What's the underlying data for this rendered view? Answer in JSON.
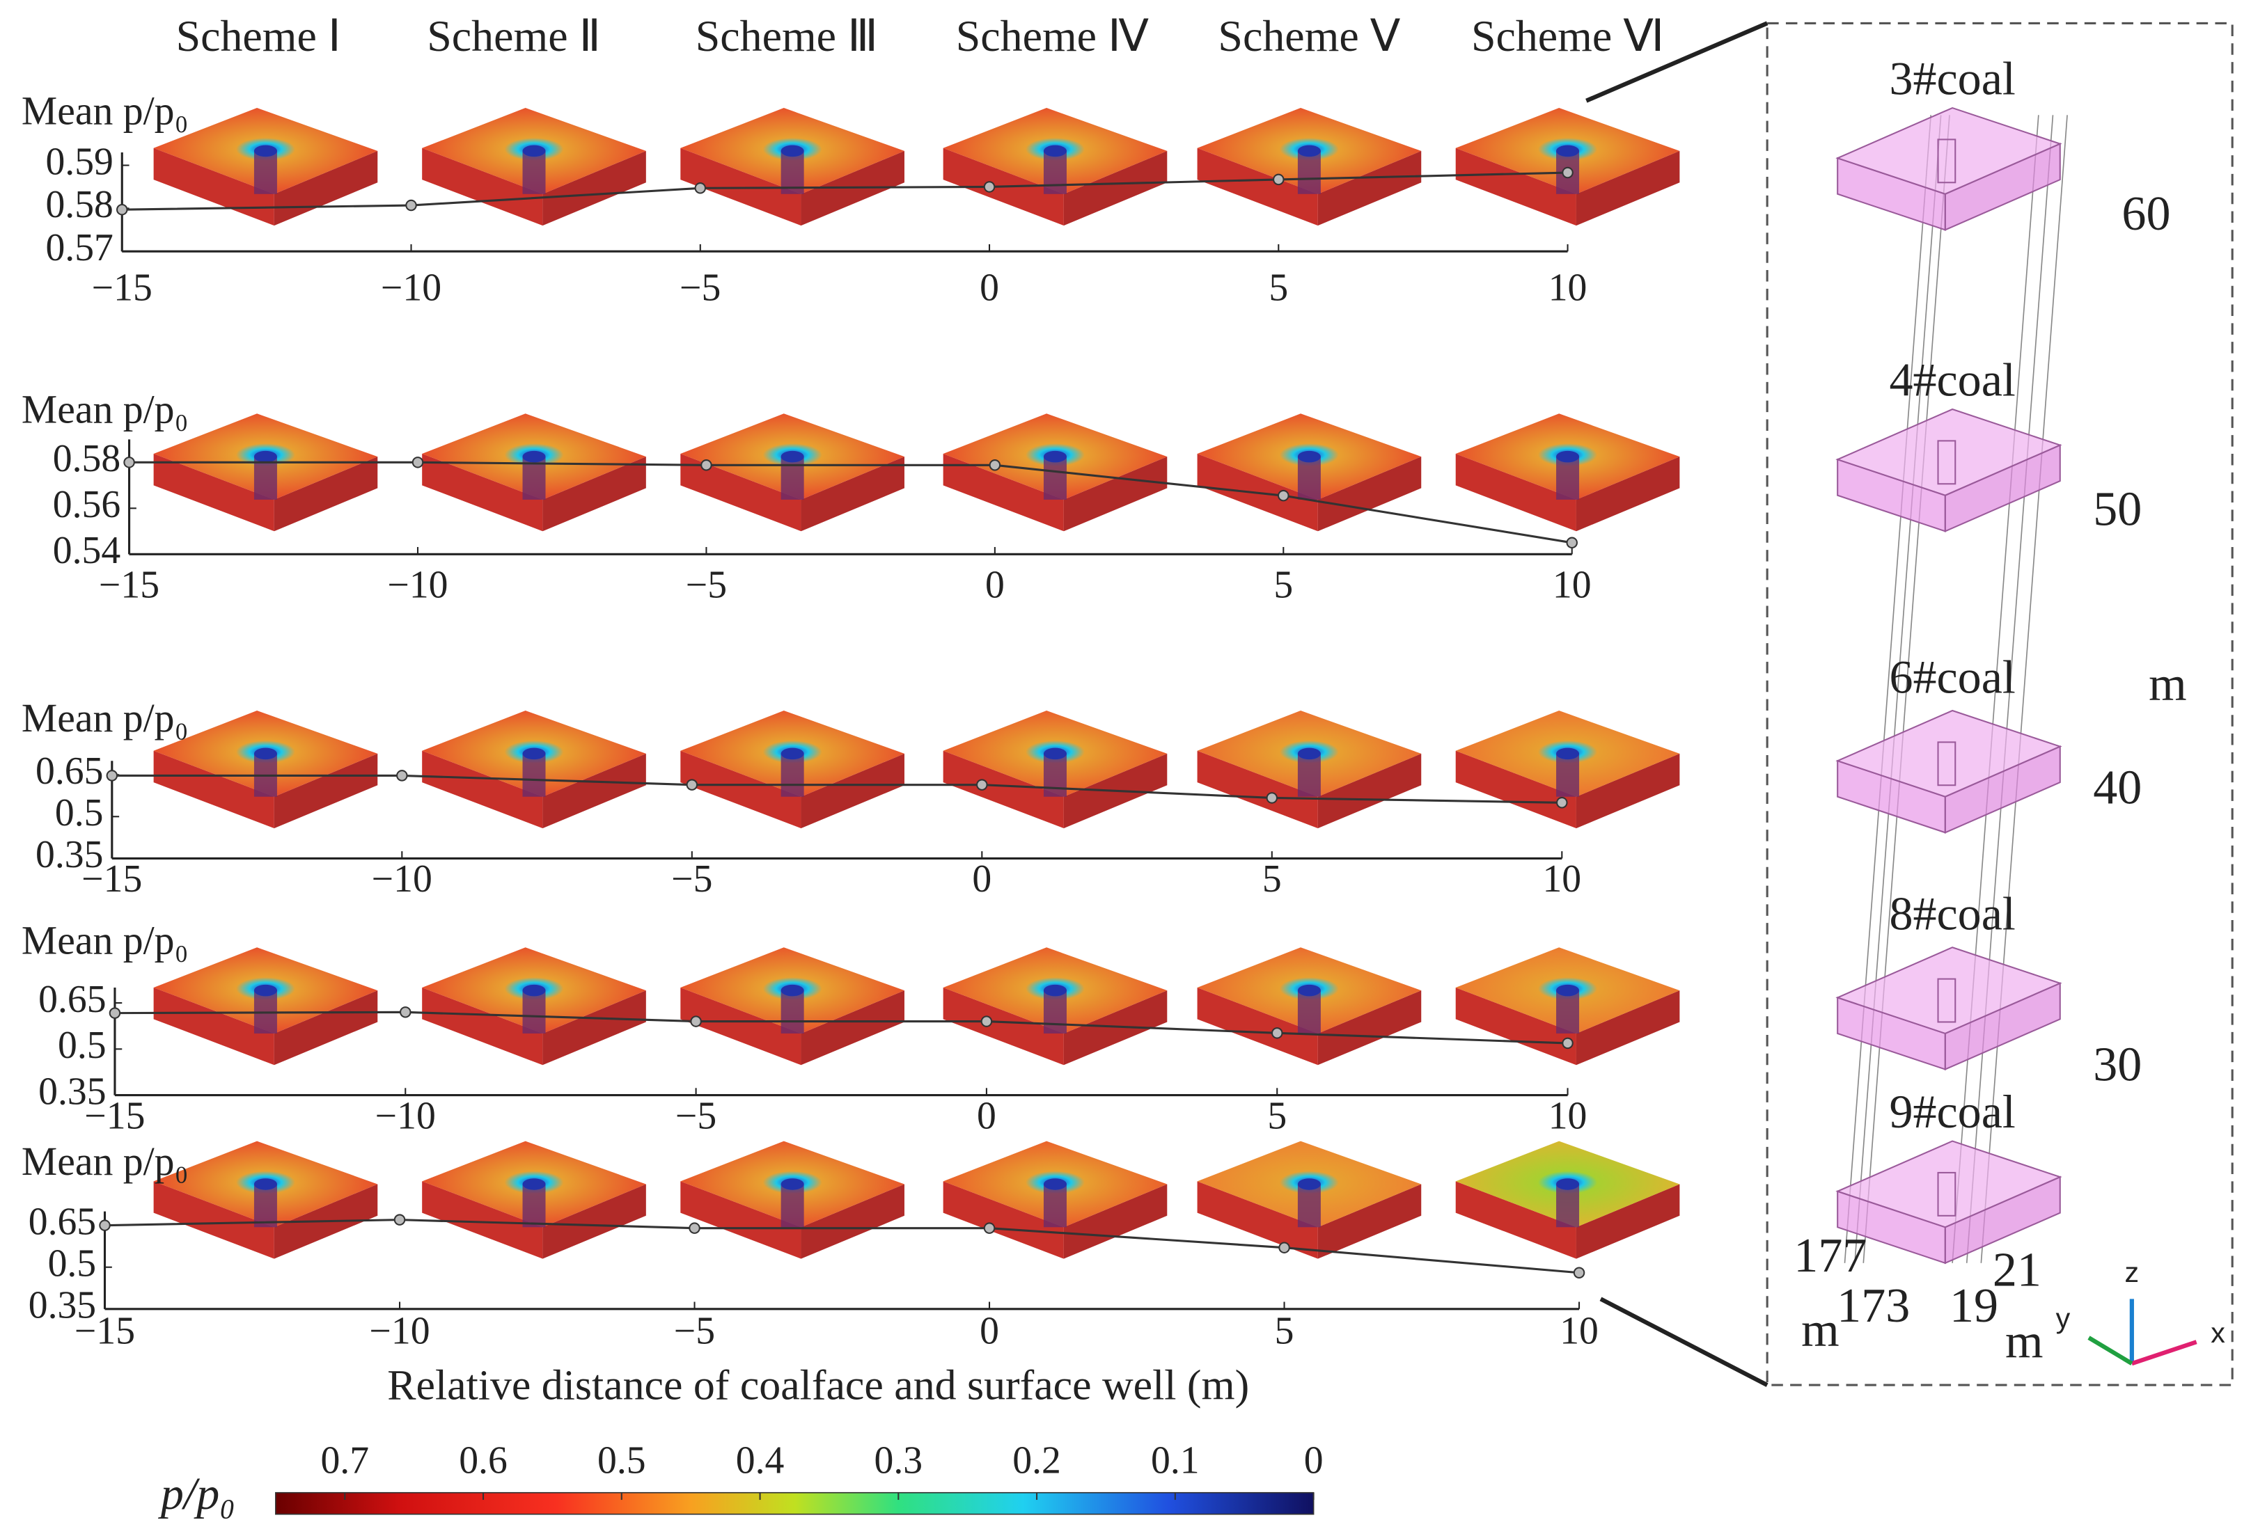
{
  "schemes": [
    "Scheme Ⅰ",
    "Scheme Ⅱ",
    "Scheme Ⅲ",
    "Scheme Ⅳ",
    "Scheme Ⅴ",
    "Scheme Ⅵ"
  ],
  "chart_data": [
    {
      "type": "line",
      "ylabel": "Mean p/p₀",
      "x": [
        -15,
        -10,
        -5,
        0,
        5,
        10
      ],
      "xlim": [
        -15,
        10
      ],
      "xticks": [
        {
          "value": -15,
          "label": "−15"
        },
        {
          "value": -10,
          "label": "−10"
        },
        {
          "value": -5,
          "label": "−5"
        },
        0,
        5,
        10
      ],
      "ylim": [
        0.57,
        0.593
      ],
      "yticks": [
        0.57,
        0.58,
        0.59
      ],
      "color": "#333333",
      "values": [
        0.5797,
        0.5807,
        0.5847,
        0.585,
        0.5867,
        0.5883
      ]
    },
    {
      "type": "line",
      "ylabel": "Mean p/p₀",
      "x": [
        -15,
        -10,
        -5,
        0,
        5,
        10
      ],
      "xlim": [
        -15,
        10
      ],
      "xticks": [
        {
          "value": -15,
          "label": "−15"
        },
        {
          "value": -10,
          "label": "−10"
        },
        {
          "value": -5,
          "label": "−5"
        },
        0,
        5,
        10
      ],
      "ylim": [
        0.54,
        0.59
      ],
      "yticks": [
        0.54,
        0.56,
        0.58
      ],
      "color": "#333333",
      "values": [
        0.58,
        0.58,
        0.5788,
        0.5788,
        0.5655,
        0.545
      ]
    },
    {
      "type": "line",
      "ylabel": "Mean p/p₀",
      "x": [
        -15,
        -10,
        -5,
        0,
        5,
        10
      ],
      "xlim": [
        -15,
        10
      ],
      "xticks": [
        {
          "value": -15,
          "label": "−15"
        },
        {
          "value": -10,
          "label": "−10"
        },
        {
          "value": -5,
          "label": "−5"
        },
        0,
        5,
        10
      ],
      "ylim": [
        0.35,
        0.7
      ],
      "yticks": [
        0.35,
        0.5,
        0.65
      ],
      "color": "#333333",
      "values": [
        0.647,
        0.647,
        0.614,
        0.614,
        0.567,
        0.55
      ]
    },
    {
      "type": "line",
      "ylabel": "Mean p/p₀",
      "x": [
        -15,
        -10,
        -5,
        0,
        5,
        10
      ],
      "xlim": [
        -15,
        10
      ],
      "xticks": [
        {
          "value": -15,
          "label": "−15"
        },
        {
          "value": -10,
          "label": "−10"
        },
        {
          "value": -5,
          "label": "−5"
        },
        0,
        5,
        10
      ],
      "ylim": [
        0.35,
        0.7
      ],
      "yticks": [
        0.35,
        0.5,
        0.65
      ],
      "color": "#333333",
      "values": [
        0.617,
        0.62,
        0.59,
        0.59,
        0.552,
        0.519
      ]
    },
    {
      "type": "line",
      "ylabel": "Mean p/p₀",
      "xlabel": "Relative distance of coalface and surface well (m)",
      "x": [
        -15,
        -10,
        -5,
        0,
        5,
        10
      ],
      "xlim": [
        -15,
        10
      ],
      "xticks": [
        {
          "value": -15,
          "label": "−15"
        },
        {
          "value": -10,
          "label": "−10"
        },
        {
          "value": -5,
          "label": "−5"
        },
        0,
        5,
        10
      ],
      "ylim": [
        0.35,
        0.7
      ],
      "yticks": [
        0.35,
        0.5,
        0.65
      ],
      "color": "#333333",
      "values": [
        0.65,
        0.67,
        0.64,
        0.64,
        0.57,
        0.48
      ]
    }
  ],
  "colorbar": {
    "label": "p/p₀",
    "lim": [
      0.75,
      0
    ],
    "ticks": [
      0.7,
      0.6,
      0.5,
      0.4,
      0.3,
      0.2,
      0.1,
      0
    ]
  },
  "inset": {
    "seams": [
      "3#coal",
      "4#coal",
      "6#coal",
      "8#coal",
      "9#coal"
    ],
    "labels": [
      "60",
      "50",
      "m",
      "40",
      "30",
      "177",
      "173",
      "m",
      "19",
      "21",
      "m",
      "z",
      "y",
      "x"
    ]
  }
}
